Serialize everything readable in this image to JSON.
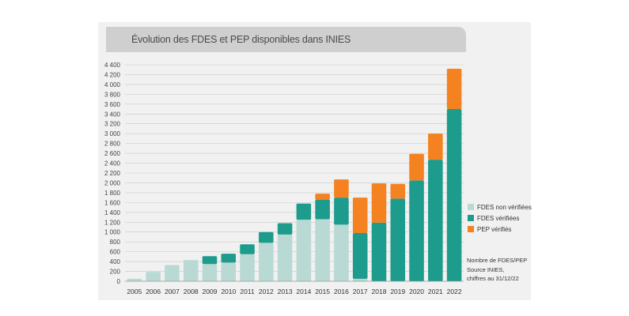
{
  "chart_data": {
    "type": "bar",
    "stacked": true,
    "title": "Évolution des FDES et PEP disponibles dans INIES",
    "xlabel": "",
    "ylabel": "",
    "categories": [
      "2005",
      "2006",
      "2007",
      "2008",
      "2009",
      "2010",
      "2011",
      "2012",
      "2013",
      "2014",
      "2015",
      "2016",
      "2017",
      "2018",
      "2019",
      "2020",
      "2021",
      "2022"
    ],
    "series": [
      {
        "name": "FDES non vérifiées",
        "color": "#b9d9d5",
        "values": [
          50,
          190,
          330,
          430,
          350,
          380,
          550,
          780,
          950,
          1250,
          1260,
          1150,
          50,
          0,
          0,
          0,
          0,
          0
        ]
      },
      {
        "name": "FDES vérifiées",
        "color": "#1d9b8d",
        "values": [
          0,
          0,
          0,
          0,
          160,
          180,
          200,
          220,
          230,
          330,
          400,
          550,
          930,
          1190,
          1680,
          2050,
          2470,
          3500
        ]
      },
      {
        "name": "PEP vérifiés",
        "color": "#f58220",
        "values": [
          0,
          0,
          0,
          0,
          0,
          0,
          0,
          0,
          0,
          0,
          120,
          370,
          720,
          800,
          300,
          540,
          530,
          820
        ]
      }
    ],
    "y_ticks": [
      "0",
      "200",
      "400",
      "600",
      "800",
      "1 000",
      "1 200",
      "1 400",
      "1 600",
      "1 800",
      "2 000",
      "2 200",
      "2 400",
      "2 600",
      "2 800",
      "3 000",
      "3 200",
      "3 400",
      "3 600",
      "3 800",
      "4 000",
      "4 200",
      "4 400"
    ],
    "ylim": [
      0,
      4400
    ],
    "grid": true,
    "legend_position": "right",
    "note": [
      "Nombre de FDES/PEP",
      "Source INIES,",
      "chiffres au 31/12/22"
    ]
  }
}
